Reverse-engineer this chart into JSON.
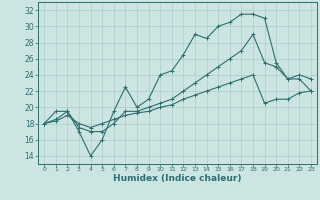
{
  "xlabel": "Humidex (Indice chaleur)",
  "background_color": "#cce5e3",
  "grid_color": "#aaccca",
  "line_color": "#2d6e6e",
  "xlim": [
    -0.5,
    23.5
  ],
  "ylim": [
    13,
    33
  ],
  "yticks": [
    14,
    16,
    18,
    20,
    22,
    24,
    26,
    28,
    30,
    32
  ],
  "xticks": [
    0,
    1,
    2,
    3,
    4,
    5,
    6,
    7,
    8,
    9,
    10,
    11,
    12,
    13,
    14,
    15,
    16,
    17,
    18,
    19,
    20,
    21,
    22,
    23
  ],
  "series": [
    {
      "x": [
        0,
        1,
        2,
        3,
        4,
        5,
        6,
        7,
        8,
        9,
        10,
        11,
        12,
        13,
        14,
        15,
        16,
        17,
        18,
        19,
        20,
        21,
        22,
        23
      ],
      "y": [
        18,
        19.5,
        19.5,
        17,
        14,
        16.0,
        19.5,
        22.5,
        20,
        21,
        24,
        24.5,
        26.5,
        29,
        28.5,
        30,
        30.5,
        31.5,
        31.5,
        31,
        25.5,
        23.5,
        24,
        23.5
      ]
    },
    {
      "x": [
        0,
        1,
        2,
        3,
        4,
        5,
        6,
        7,
        8,
        9,
        10,
        11,
        12,
        13,
        14,
        15,
        16,
        17,
        18,
        19,
        20,
        21,
        22,
        23
      ],
      "y": [
        18,
        18.5,
        19.5,
        17.5,
        17,
        17,
        18,
        19.5,
        19.5,
        20,
        20.5,
        21,
        22,
        23,
        24,
        25,
        26,
        27,
        29,
        25.5,
        25,
        23.5,
        23.5,
        22
      ]
    },
    {
      "x": [
        0,
        1,
        2,
        3,
        4,
        5,
        6,
        7,
        8,
        9,
        10,
        11,
        12,
        13,
        14,
        15,
        16,
        17,
        18,
        19,
        20,
        21,
        22,
        23
      ],
      "y": [
        18,
        18.3,
        19,
        18,
        17.5,
        18,
        18.5,
        19,
        19.3,
        19.5,
        20,
        20.3,
        21,
        21.5,
        22,
        22.5,
        23,
        23.5,
        24,
        20.5,
        21,
        21,
        21.8,
        22
      ]
    }
  ]
}
